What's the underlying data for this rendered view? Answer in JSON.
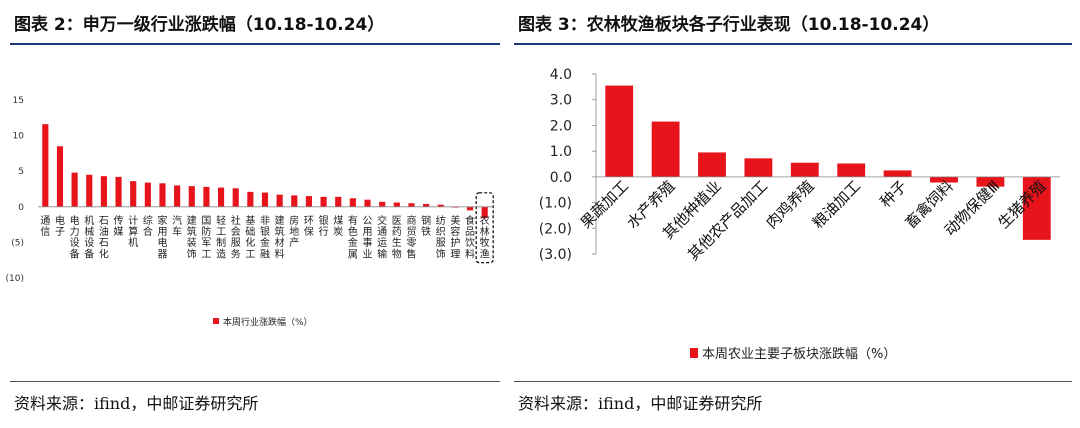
{
  "left_panel": {
    "title": "图表 2：申万一级行业涨跌幅（10.18-10.24）",
    "source": "资料来源：ifind，中邮证券研究所"
  },
  "right_panel": {
    "title": "图表 3：农林牧渔板块各子行业表现（10.18-10.24）",
    "source": "资料来源：ifind，中邮证券研究所"
  },
  "colors": {
    "bar": "#e8141b",
    "rule": "#1f3a7a",
    "highlight_box": "#000000"
  },
  "chart_data": [
    {
      "type": "bar",
      "title": "",
      "xlabel": "",
      "ylabel": "",
      "ylim": [
        -10,
        15
      ],
      "yticks": [
        "15",
        "10",
        "5",
        "0",
        "(5)",
        "(10)"
      ],
      "ytick_values": [
        15,
        10,
        5,
        0,
        -5,
        -10
      ],
      "grid": false,
      "legend_position": "bottom",
      "highlight_category": "农林牧渔",
      "categories": [
        "通信",
        "电子",
        "电力设备",
        "机械设备",
        "石油石化",
        "传媒",
        "计算机",
        "综合",
        "家用电器",
        "汽车",
        "建筑装饰",
        "国防军工",
        "轻工制造",
        "社会服务",
        "基础化工",
        "非银金融",
        "建筑材料",
        "房地产",
        "环保",
        "银行",
        "煤炭",
        "有色金属",
        "公用事业",
        "交通运输",
        "医药生物",
        "商贸零售",
        "钢铁",
        "纺织服饰",
        "美容护理",
        "食品饮料",
        "农林牧渔"
      ],
      "series": [
        {
          "name": "本周行业涨跌幅（%）",
          "values": [
            11.6,
            8.5,
            4.8,
            4.5,
            4.3,
            4.2,
            3.6,
            3.4,
            3.3,
            3.0,
            2.9,
            2.8,
            2.7,
            2.6,
            2.1,
            2.0,
            1.7,
            1.6,
            1.5,
            1.4,
            1.4,
            1.2,
            1.0,
            0.7,
            0.6,
            0.5,
            0.4,
            0.3,
            -0.1,
            -0.5,
            -1.6
          ]
        }
      ]
    },
    {
      "type": "bar",
      "title": "",
      "xlabel": "",
      "ylabel": "",
      "ylim": [
        -3.0,
        4.0
      ],
      "yticks": [
        "4.0",
        "3.0",
        "2.0",
        "1.0",
        "0.0",
        "(1.0)",
        "(2.0)",
        "(3.0)"
      ],
      "ytick_values": [
        4,
        3,
        2,
        1,
        0,
        -1,
        -2,
        -3
      ],
      "grid": false,
      "legend_position": "bottom",
      "categories": [
        "果蔬加工",
        "水产养殖",
        "其他种植业",
        "其他农产品加工",
        "肉鸡养殖",
        "粮油加工",
        "种子",
        "畜禽饲料",
        "动物保健Ⅲ",
        "生猪养殖"
      ],
      "series": [
        {
          "name": "本周农业主要子板块涨跌幅（%）",
          "values": [
            3.55,
            2.15,
            0.95,
            0.72,
            0.55,
            0.52,
            0.25,
            -0.22,
            -0.38,
            -2.45
          ]
        }
      ]
    }
  ]
}
